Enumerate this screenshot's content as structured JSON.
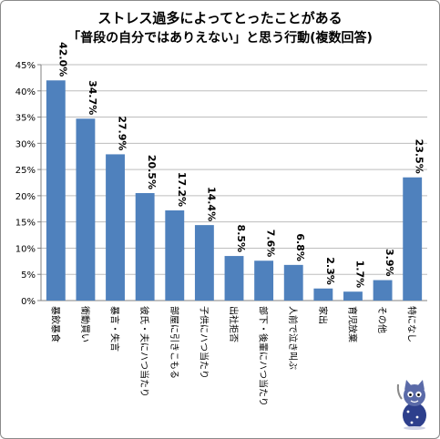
{
  "chart_data": {
    "type": "bar",
    "title": "ストレス過多によってとったことがある",
    "subtitle": "「普段の自分ではありえない」と思う行動(複数回答)",
    "categories": [
      "暴飲暴食",
      "衝動買い",
      "暴言・失言",
      "彼氏・夫にハつ当たり",
      "部屋に引きこもる",
      "子供にハつ当たり",
      "出社拒否",
      "部下・後輩にハつ当たり",
      "人前で泣き叫ぶ",
      "家出",
      "育児放棄",
      "その他",
      "特になし"
    ],
    "values": [
      42.0,
      34.7,
      27.9,
      20.5,
      17.2,
      14.4,
      8.5,
      7.6,
      6.8,
      2.3,
      1.7,
      3.9,
      23.5
    ],
    "value_labels": [
      "42.0%",
      "34.7%",
      "27.9%",
      "20.5%",
      "17.2%",
      "14.4%",
      "8.5%",
      "7.6%",
      "6.8%",
      "2.3%",
      "1.7%",
      "3.9%",
      "23.5%"
    ],
    "yticks": [
      "0%",
      "5%",
      "10%",
      "15%",
      "20%",
      "25%",
      "30%",
      "35%",
      "40%",
      "45%"
    ],
    "ylim": [
      0,
      45
    ],
    "grid": true,
    "bar_color": "#4f81bd",
    "grid_color": "#bdbdbd"
  },
  "decoration": {
    "icon": "cat-mascot-icon"
  }
}
